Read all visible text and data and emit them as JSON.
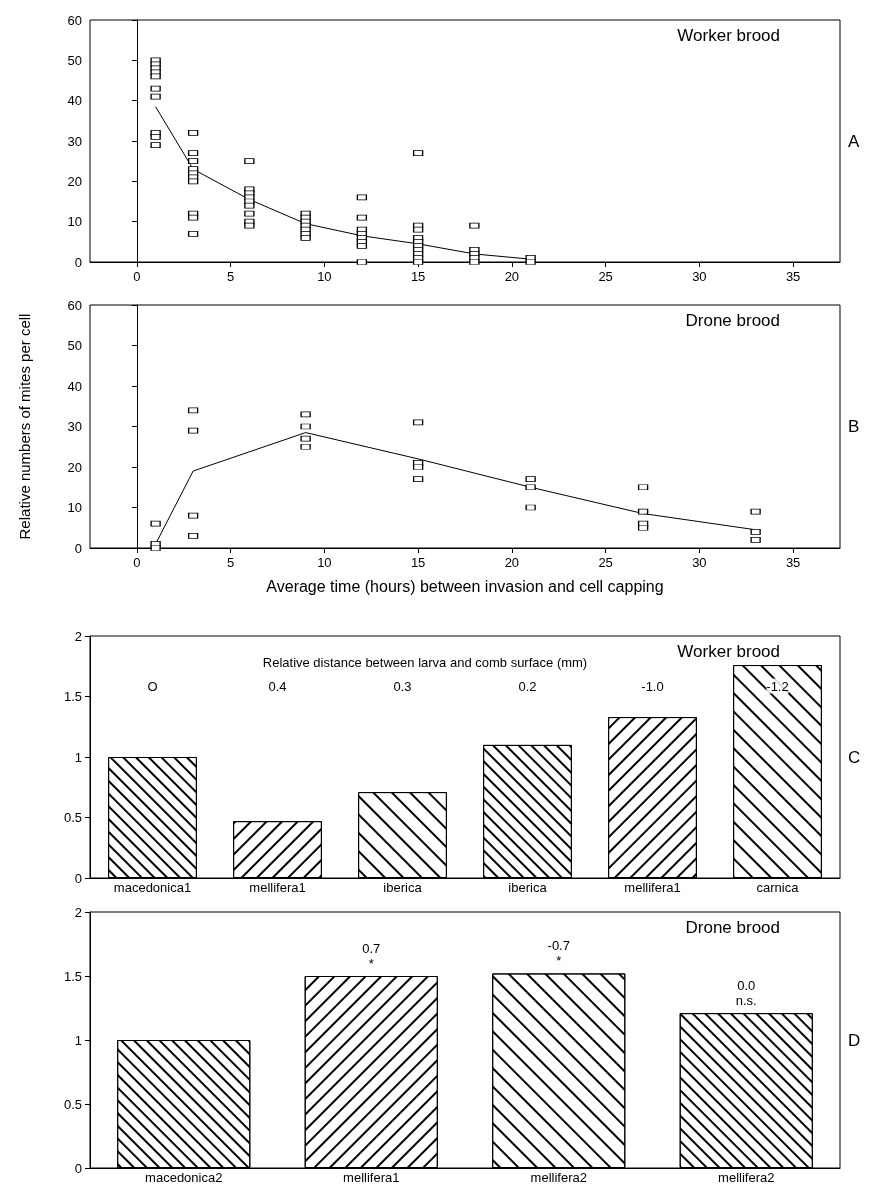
{
  "chart_data": [
    {
      "type": "scatter",
      "title": "Worker brood",
      "marker": "square",
      "xlim": [
        -2.5,
        37.5
      ],
      "xticks": [
        0,
        5,
        10,
        15,
        20,
        25,
        30,
        35
      ],
      "ylim": [
        0,
        60
      ],
      "yticks": [
        0,
        10,
        20,
        30,
        40,
        50,
        60
      ],
      "annotations": [
        "A"
      ],
      "series": [
        {
          "type": "scatter",
          "color": "#000000",
          "x": [
            1,
            1,
            1,
            1,
            1,
            1,
            1,
            1,
            1,
            1,
            3,
            3,
            3,
            3,
            3,
            3,
            3,
            3,
            3,
            3,
            6,
            6,
            6,
            6,
            6,
            6,
            6,
            6,
            6,
            9,
            9,
            9,
            9,
            9,
            9,
            9,
            12,
            12,
            12,
            12,
            12,
            12,
            12,
            12,
            15,
            15,
            15,
            15,
            15,
            15,
            15,
            15,
            15,
            15,
            18,
            18,
            18,
            18,
            18,
            21,
            21
          ],
          "values": [
            50,
            49,
            48,
            47,
            46,
            43,
            41,
            32,
            31,
            29,
            32,
            27,
            25,
            23,
            22,
            21,
            20,
            12,
            11,
            7,
            25,
            18,
            17,
            16,
            15,
            14,
            12,
            10,
            9,
            12,
            11,
            10,
            9,
            8,
            7,
            6,
            16,
            11,
            8,
            7,
            6,
            5,
            4,
            0,
            27,
            9,
            8,
            6,
            5,
            4,
            3,
            2,
            1,
            0,
            9,
            3,
            2,
            1,
            0,
            1,
            0
          ]
        },
        {
          "type": "line",
          "marker": "none",
          "color": "#000000",
          "x": [
            1,
            3,
            6,
            9,
            12,
            15,
            18,
            21
          ],
          "values": [
            38.5,
            23,
            15.5,
            9.5,
            6.5,
            4.5,
            2,
            0.7
          ]
        }
      ]
    },
    {
      "type": "scatter",
      "title": "Drone brood",
      "xlabel": "Average time (hours) between invasion and cell capping",
      "ylabel": "Relative numbers of mites per cell",
      "marker": "square",
      "xlim": [
        -2.5,
        37.5
      ],
      "xticks": [
        0,
        5,
        10,
        15,
        20,
        25,
        30,
        35
      ],
      "ylim": [
        0,
        60
      ],
      "yticks": [
        0,
        10,
        20,
        30,
        40,
        50,
        60
      ],
      "annotations": [
        "B"
      ],
      "series": [
        {
          "type": "scatter",
          "color": "#000000",
          "x": [
            1,
            1,
            1,
            3,
            3,
            3,
            3,
            9,
            9,
            9,
            9,
            15,
            15,
            15,
            15,
            21,
            21,
            21,
            27,
            27,
            27,
            27,
            33,
            33,
            33
          ],
          "values": [
            6,
            1,
            0,
            34,
            29,
            8,
            3,
            33,
            30,
            27,
            25,
            31,
            21,
            20,
            17,
            17,
            15,
            10,
            15,
            9,
            6,
            5,
            9,
            4,
            2
          ]
        },
        {
          "type": "line",
          "marker": "none",
          "color": "#000000",
          "x": [
            1,
            3,
            9,
            15,
            21,
            27,
            33
          ],
          "values": [
            1,
            19,
            28.5,
            22,
            15,
            8.5,
            4.5
          ]
        }
      ]
    },
    {
      "type": "bar",
      "title": "Worker brood",
      "categories": [
        "macedonica1",
        "mellifera1",
        "iberica",
        "iberica",
        "mellifera1",
        "carnica"
      ],
      "values": [
        1.0,
        0.47,
        0.71,
        1.1,
        1.33,
        1.76
      ],
      "color": "#ffffff",
      "ylim": [
        0,
        2
      ],
      "yticks": [
        0,
        0.5,
        1,
        1.5,
        2
      ],
      "annotations": [
        "Relative distance between larva and comb surface (mm)",
        "O",
        "0.4",
        "0.3",
        "0.2",
        "-1.0",
        "-1.2",
        "C"
      ]
    },
    {
      "type": "bar",
      "title": "Drone brood",
      "categories": [
        "macedonica2",
        "mellifera1",
        "mellifera2",
        "mellifera2"
      ],
      "values": [
        1.0,
        1.5,
        1.52,
        1.21
      ],
      "color": "#ffffff",
      "ylim": [
        0,
        2
      ],
      "yticks": [
        0,
        0.5,
        1,
        1.5,
        2
      ],
      "annotations": [
        "0.7\n*",
        "-0.7\n*",
        "0.0\nn.s.",
        "D"
      ]
    }
  ]
}
